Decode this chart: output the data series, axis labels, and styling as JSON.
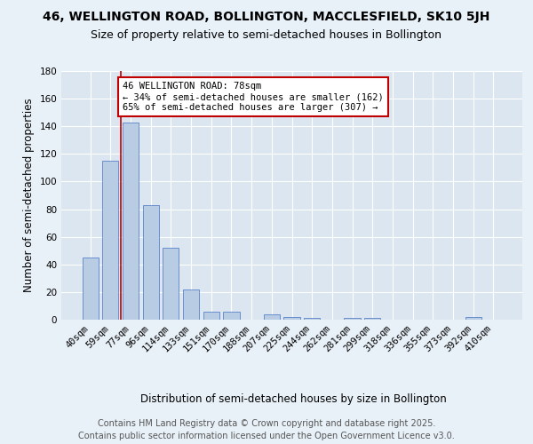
{
  "title1": "46, WELLINGTON ROAD, BOLLINGTON, MACCLESFIELD, SK10 5JH",
  "title2": "Size of property relative to semi-detached houses in Bollington",
  "xlabel": "Distribution of semi-detached houses by size in Bollington",
  "ylabel": "Number of semi-detached properties",
  "categories": [
    "40sqm",
    "59sqm",
    "77sqm",
    "96sqm",
    "114sqm",
    "133sqm",
    "151sqm",
    "170sqm",
    "188sqm",
    "207sqm",
    "225sqm",
    "244sqm",
    "262sqm",
    "281sqm",
    "299sqm",
    "318sqm",
    "336sqm",
    "355sqm",
    "373sqm",
    "392sqm",
    "410sqm"
  ],
  "values": [
    45,
    115,
    143,
    83,
    52,
    22,
    6,
    6,
    0,
    4,
    2,
    1,
    0,
    1,
    1,
    0,
    0,
    0,
    0,
    2,
    0
  ],
  "bar_color": "#b8cce4",
  "bar_edgecolor": "#4472c4",
  "highlight_index": 2,
  "highlight_line_color": "#c00000",
  "ylim": [
    0,
    180
  ],
  "yticks": [
    0,
    20,
    40,
    60,
    80,
    100,
    120,
    140,
    160,
    180
  ],
  "annotation_text": "46 WELLINGTON ROAD: 78sqm\n← 34% of semi-detached houses are smaller (162)\n65% of semi-detached houses are larger (307) →",
  "annotation_box_edgecolor": "#c00000",
  "footnote1": "Contains HM Land Registry data © Crown copyright and database right 2025.",
  "footnote2": "Contains public sector information licensed under the Open Government Licence v3.0.",
  "background_color": "#e8f0f8",
  "plot_bg_color": "#dce6f0",
  "grid_color": "#ffffff",
  "title1_fontsize": 10,
  "title2_fontsize": 9,
  "axis_fontsize": 8.5,
  "tick_fontsize": 7.5,
  "annot_fontsize": 7.5,
  "footnote_fontsize": 7
}
